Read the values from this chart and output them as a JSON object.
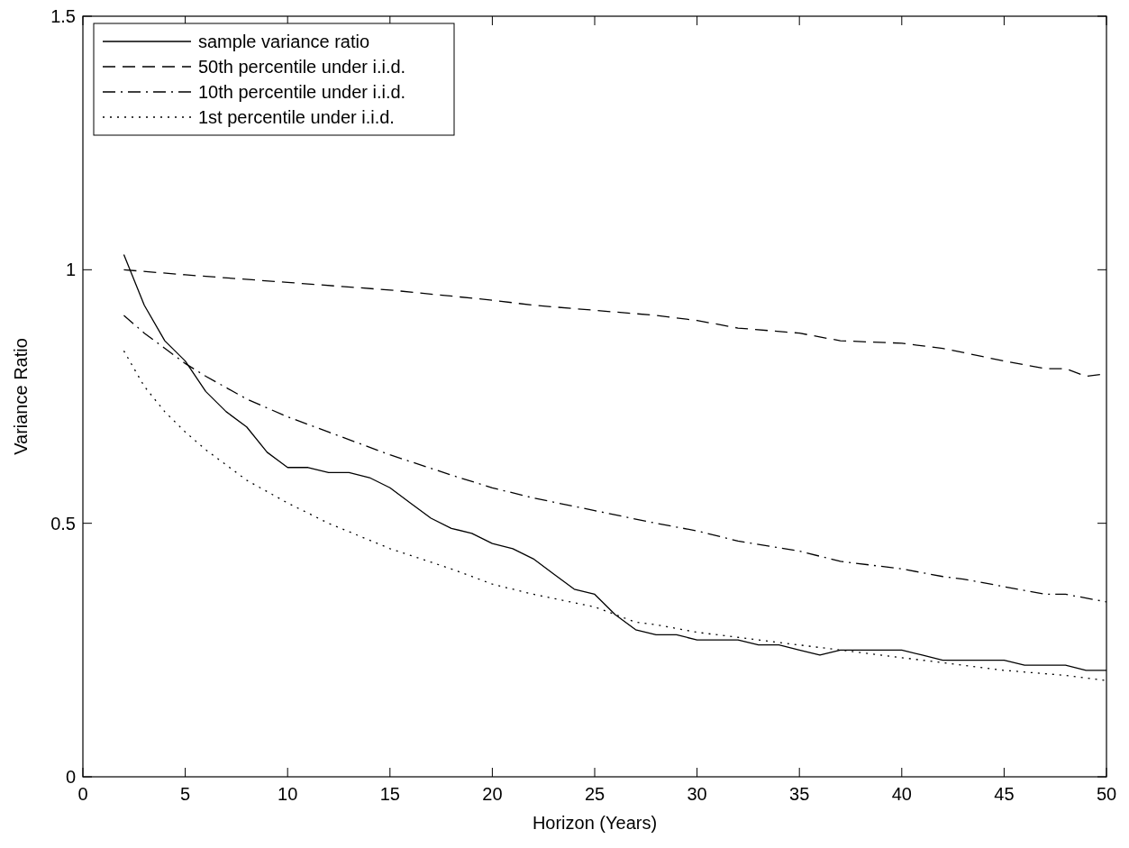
{
  "chart_data": {
    "type": "line",
    "xlabel": "Horizon (Years)",
    "ylabel": "Variance Ratio",
    "xlim": [
      0,
      50
    ],
    "ylim": [
      0,
      1.5
    ],
    "xticks": [
      0,
      5,
      10,
      15,
      20,
      25,
      30,
      35,
      40,
      45,
      50
    ],
    "yticks": [
      0,
      0.5,
      1,
      1.5
    ],
    "grid": false,
    "legend": "top left",
    "series": [
      {
        "name": "sample variance ratio",
        "color": "#000000",
        "line_style": "solid",
        "x": [
          2,
          3,
          4,
          5,
          6,
          7,
          8,
          9,
          10,
          11,
          12,
          13,
          14,
          15,
          16,
          17,
          18,
          19,
          20,
          21,
          22,
          23,
          24,
          25,
          26,
          27,
          28,
          29,
          30,
          31,
          32,
          33,
          34,
          35,
          36,
          37,
          38,
          39,
          40,
          41,
          42,
          43,
          44,
          45,
          46,
          47,
          48,
          49,
          50
        ],
        "values": [
          1.03,
          0.93,
          0.86,
          0.82,
          0.76,
          0.72,
          0.69,
          0.64,
          0.61,
          0.61,
          0.6,
          0.6,
          0.59,
          0.57,
          0.54,
          0.51,
          0.49,
          0.48,
          0.46,
          0.45,
          0.43,
          0.4,
          0.37,
          0.36,
          0.32,
          0.29,
          0.28,
          0.28,
          0.27,
          0.27,
          0.27,
          0.26,
          0.26,
          0.25,
          0.24,
          0.25,
          0.25,
          0.25,
          0.25,
          0.24,
          0.23,
          0.23,
          0.23,
          0.23,
          0.22,
          0.22,
          0.22,
          0.21,
          0.21
        ]
      },
      {
        "name": "50th percentile under i.i.d.",
        "color": "#000000",
        "line_style": "dashed",
        "x": [
          2,
          5,
          10,
          15,
          20,
          22,
          25,
          28,
          30,
          32,
          35,
          37,
          40,
          42,
          45,
          47,
          48,
          49,
          50
        ],
        "values": [
          1.0,
          0.99,
          0.975,
          0.96,
          0.94,
          0.93,
          0.92,
          0.91,
          0.9,
          0.885,
          0.875,
          0.86,
          0.855,
          0.845,
          0.82,
          0.805,
          0.805,
          0.79,
          0.795
        ]
      },
      {
        "name": "10th percentile under i.i.d.",
        "color": "#000000",
        "line_style": "dashdot",
        "x": [
          2,
          3,
          4,
          5,
          6,
          8,
          10,
          12,
          15,
          18,
          20,
          22,
          25,
          28,
          30,
          32,
          35,
          37,
          40,
          42,
          43,
          45,
          47,
          48,
          50
        ],
        "values": [
          0.91,
          0.875,
          0.845,
          0.815,
          0.79,
          0.745,
          0.71,
          0.68,
          0.635,
          0.595,
          0.57,
          0.55,
          0.525,
          0.5,
          0.485,
          0.465,
          0.445,
          0.425,
          0.41,
          0.395,
          0.39,
          0.375,
          0.36,
          0.36,
          0.345
        ]
      },
      {
        "name": "1st percentile under i.i.d.",
        "color": "#000000",
        "line_style": "dotted",
        "x": [
          2,
          3,
          4,
          5,
          6,
          8,
          10,
          12,
          15,
          18,
          20,
          22,
          25,
          27,
          28,
          30,
          32,
          35,
          38,
          40,
          43,
          45,
          48,
          50
        ],
        "values": [
          0.84,
          0.77,
          0.72,
          0.68,
          0.645,
          0.585,
          0.54,
          0.5,
          0.45,
          0.41,
          0.38,
          0.36,
          0.335,
          0.305,
          0.3,
          0.285,
          0.275,
          0.26,
          0.245,
          0.235,
          0.22,
          0.21,
          0.2,
          0.19
        ]
      }
    ]
  }
}
